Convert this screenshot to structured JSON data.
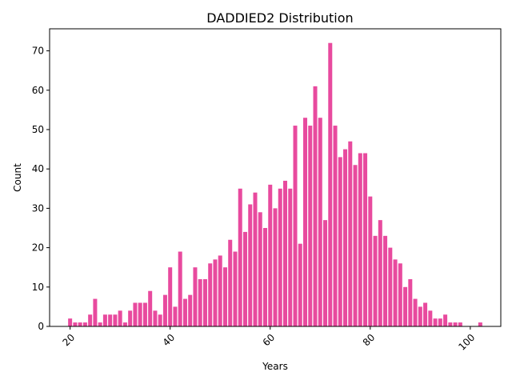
{
  "chart_data": {
    "type": "bar",
    "title": "DADDIED2 Distribution",
    "xlabel": "Years",
    "ylabel": "Count",
    "bar_color": "#e84a9e",
    "xlim": [
      15.9,
      106.1
    ],
    "ylim": [
      0,
      75.6
    ],
    "x_ticks": [
      20,
      40,
      60,
      80,
      100
    ],
    "y_ticks": [
      0,
      10,
      20,
      30,
      40,
      50,
      60,
      70
    ],
    "grid": false,
    "x": [
      20,
      21,
      22,
      23,
      24,
      25,
      26,
      27,
      28,
      29,
      30,
      31,
      32,
      33,
      34,
      35,
      36,
      37,
      38,
      39,
      40,
      41,
      42,
      43,
      44,
      45,
      46,
      47,
      48,
      49,
      50,
      51,
      52,
      53,
      54,
      55,
      56,
      57,
      58,
      59,
      60,
      61,
      62,
      63,
      64,
      65,
      66,
      67,
      68,
      69,
      70,
      71,
      72,
      73,
      74,
      75,
      76,
      77,
      78,
      79,
      80,
      81,
      82,
      83,
      84,
      85,
      86,
      87,
      88,
      89,
      90,
      91,
      92,
      93,
      94,
      95,
      96,
      97,
      98,
      102
    ],
    "values": [
      2,
      1,
      1,
      1,
      3,
      7,
      1,
      3,
      3,
      3,
      4,
      1,
      4,
      6,
      6,
      6,
      9,
      4,
      3,
      8,
      15,
      5,
      19,
      7,
      8,
      15,
      12,
      12,
      16,
      17,
      18,
      15,
      22,
      19,
      35,
      24,
      31,
      34,
      29,
      25,
      36,
      30,
      35,
      37,
      35,
      51,
      21,
      53,
      51,
      61,
      53,
      27,
      72,
      51,
      43,
      45,
      47,
      41,
      44,
      44,
      33,
      23,
      27,
      23,
      20,
      17,
      16,
      10,
      12,
      7,
      5,
      6,
      4,
      2,
      2,
      3,
      1,
      1,
      1,
      1
    ]
  }
}
